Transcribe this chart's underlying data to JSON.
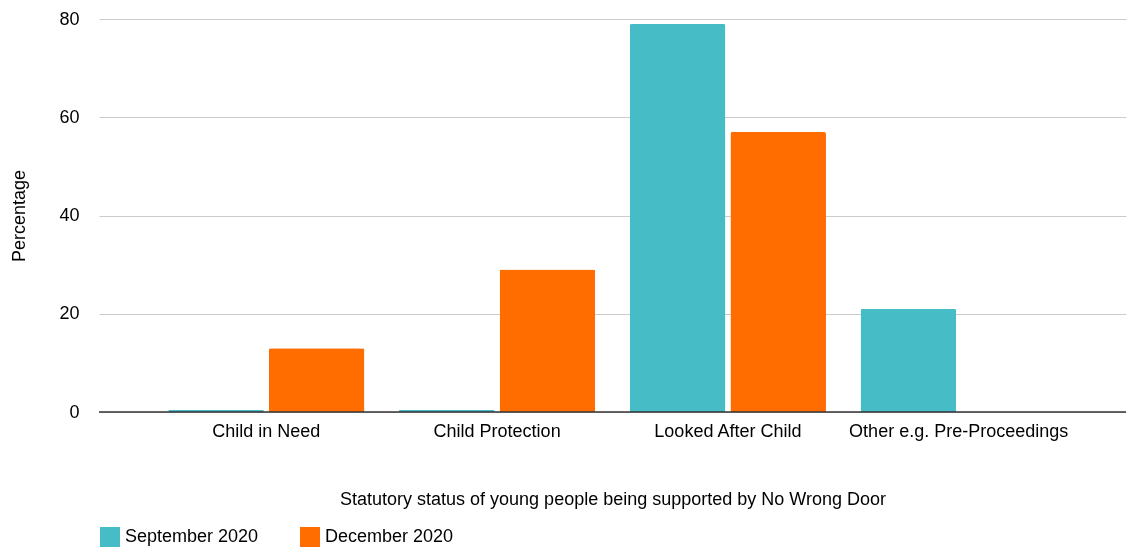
{
  "chart_data": {
    "type": "bar",
    "xlabel": "Statutory status of young people being supported by No Wrong Door",
    "ylabel": "Percentage",
    "categories": [
      "Child in Need",
      "Child Protection",
      "Looked After Child",
      "Other e.g. Pre-Proceedings"
    ],
    "series": [
      {
        "name": "September 2020",
        "color": "#46bdc6",
        "values": [
          0.4,
          0.4,
          79,
          21
        ]
      },
      {
        "name": "December 2020",
        "color": "#ff6d01",
        "values": [
          13,
          29,
          57,
          0
        ]
      }
    ],
    "ylim": [
      0,
      80
    ],
    "yticks": [
      0,
      20,
      40,
      60,
      80
    ],
    "grid": "y",
    "legend": "bottom"
  }
}
